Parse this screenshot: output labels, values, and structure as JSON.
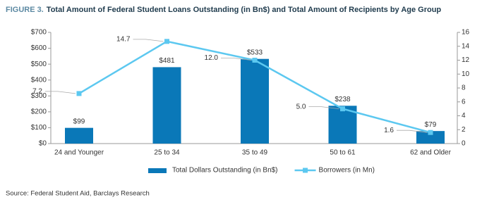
{
  "chart_data": {
    "type": "bar",
    "figure_label": "FIGURE 3.",
    "title": "Total Amount of Federal Student Loans Outstanding (in Bn$) and Total Amount of Recipients by Age Group",
    "categories": [
      "24 and Younger",
      "25 to 34",
      "35 to 49",
      "50 to 61",
      "62 and Older"
    ],
    "series": [
      {
        "name": "Total Dollars Outstanding (in Bn$)",
        "type": "bar",
        "color": "#0a78b8",
        "values": [
          99,
          481,
          533,
          238,
          79
        ],
        "value_labels": [
          "$99",
          "$481",
          "$533",
          "$238",
          "$79"
        ]
      },
      {
        "name": "Borrowers (in Mn)",
        "type": "line",
        "axis": "y2",
        "color": "#5cc8f0",
        "values": [
          7.2,
          14.7,
          12.0,
          5.0,
          1.6
        ],
        "value_labels": [
          "7.2",
          "14.7",
          "12.0",
          "5.0",
          "1.6"
        ]
      }
    ],
    "ylim": [
      0,
      700
    ],
    "yticks": [
      {
        "value": 0,
        "label": "$0"
      },
      {
        "value": 100,
        "label": "$100"
      },
      {
        "value": 200,
        "label": "$200"
      },
      {
        "value": 300,
        "label": "$300"
      },
      {
        "value": 400,
        "label": "$400"
      },
      {
        "value": 500,
        "label": "$500"
      },
      {
        "value": 600,
        "label": "$600"
      },
      {
        "value": 700,
        "label": "$700"
      }
    ],
    "y2lim": [
      0,
      16
    ],
    "y2ticks": [
      0,
      2,
      4,
      6,
      8,
      10,
      12,
      14,
      16
    ],
    "grid": false,
    "legend": "bottom",
    "source": "Source: Federal Student Aid, Barclays Research"
  }
}
